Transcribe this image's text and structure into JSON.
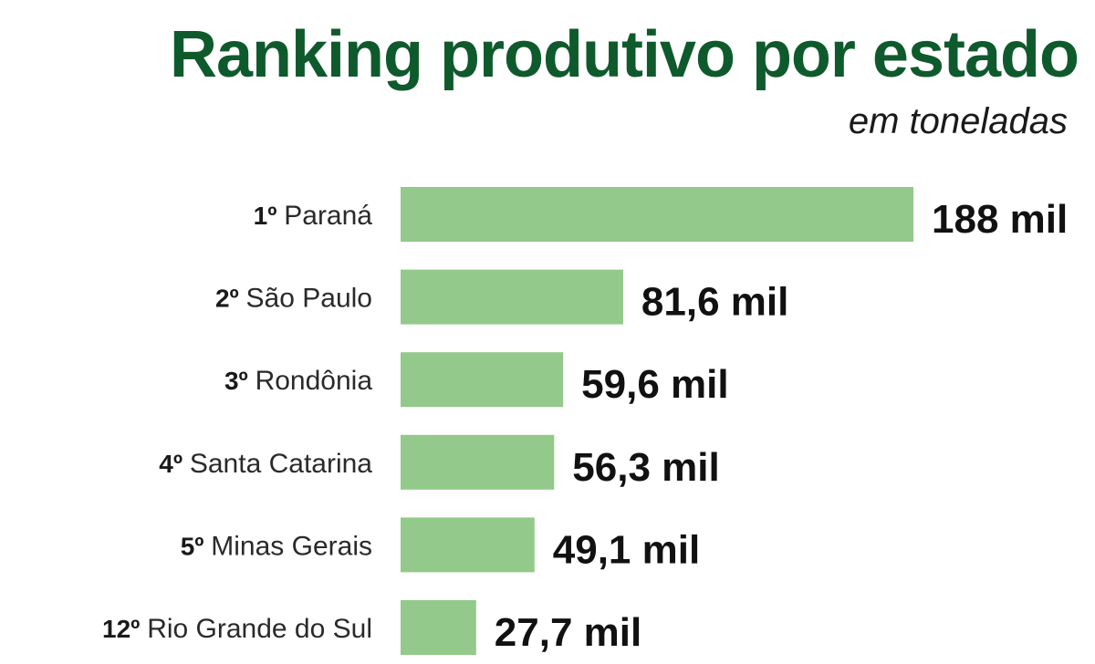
{
  "title": "Ranking produtivo por estado",
  "subtitle": "em toneladas",
  "colors": {
    "title": "#0f5a2c",
    "bar": "#93c98a",
    "text": "#1a1a1a"
  },
  "chart_data": {
    "type": "bar",
    "orientation": "horizontal",
    "title": "Ranking produtivo por estado",
    "subtitle": "em toneladas",
    "ranks": [
      "1º",
      "2º",
      "3º",
      "4º",
      "5º",
      "12º"
    ],
    "categories": [
      "Paraná",
      "São Paulo",
      "Rondônia",
      "Santa Catarina",
      "Minas Gerais",
      "Rio Grande do Sul"
    ],
    "values": [
      188,
      81.6,
      59.6,
      56.3,
      49.1,
      27.7
    ],
    "value_labels": [
      "188 mil",
      "81,6 mil",
      "59,6 mil",
      "56,3 mil",
      "49,1 mil",
      "27,7 mil"
    ],
    "unit": "mil toneladas",
    "grid": false,
    "legend": "none"
  }
}
